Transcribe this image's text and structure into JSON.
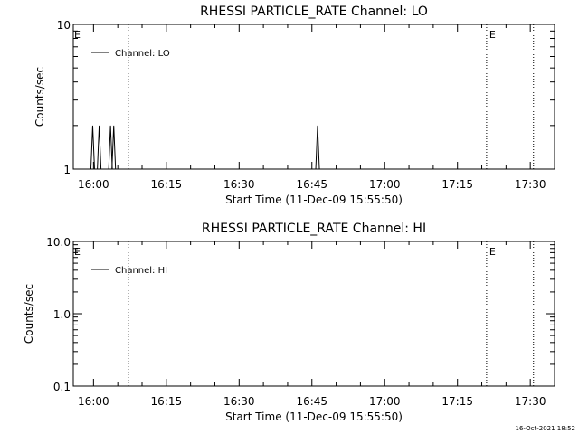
{
  "window": {
    "timestamp": "16-Oct-2021 18:52"
  },
  "chart_data": [
    {
      "type": "line",
      "title": "RHESSI PARTICLE_RATE Channel: LO",
      "xlabel": "Start Time (11-Dec-09 15:55:50)",
      "ylabel": "Counts/sec",
      "yscale": "log",
      "ylim": [
        1,
        10
      ],
      "yticks": [
        1,
        10
      ],
      "ytick_labels": [
        "1",
        "10"
      ],
      "xlim": [
        "15:55:50",
        "17:35:00"
      ],
      "xticks": [
        "16:00",
        "16:15",
        "16:30",
        "16:45",
        "17:00",
        "17:15",
        "17:30"
      ],
      "legend": {
        "position": "top-left",
        "entries": [
          "Channel: LO"
        ]
      },
      "grid": false,
      "event_markers": [
        {
          "time": "16:07:10",
          "style": "dotted",
          "label": ""
        },
        {
          "time": "17:21:00",
          "style": "dotted",
          "label": "E"
        },
        {
          "time": "17:30:40",
          "style": "dotted",
          "label": ""
        }
      ],
      "start_marker_label": "E",
      "series": [
        {
          "name": "Channel: LO",
          "baseline": 1,
          "spikes": [
            {
              "time": "15:59:50",
              "value": 2
            },
            {
              "time": "16:01:10",
              "value": 2
            },
            {
              "time": "16:03:30",
              "value": 2
            },
            {
              "time": "16:04:10",
              "value": 2
            },
            {
              "time": "16:46:10",
              "value": 2
            }
          ]
        }
      ]
    },
    {
      "type": "line",
      "title": "RHESSI PARTICLE_RATE Channel: HI",
      "xlabel": "Start Time (11-Dec-09 15:55:50)",
      "ylabel": "Counts/sec",
      "yscale": "log",
      "ylim": [
        0.1,
        10
      ],
      "yticks": [
        0.1,
        1,
        10
      ],
      "ytick_labels": [
        "0.1",
        "1.0",
        "10.0"
      ],
      "xlim": [
        "15:55:50",
        "17:35:00"
      ],
      "xticks": [
        "16:00",
        "16:15",
        "16:30",
        "16:45",
        "17:00",
        "17:15",
        "17:30"
      ],
      "legend": {
        "position": "top-left",
        "entries": [
          "Channel: HI"
        ]
      },
      "grid": false,
      "event_markers": [
        {
          "time": "16:07:10",
          "style": "dotted",
          "label": ""
        },
        {
          "time": "17:21:00",
          "style": "dotted",
          "label": "E"
        },
        {
          "time": "17:30:40",
          "style": "dotted",
          "label": ""
        }
      ],
      "start_marker_label": "E",
      "series": [
        {
          "name": "Channel: HI",
          "baseline": null,
          "spikes": []
        }
      ]
    }
  ]
}
